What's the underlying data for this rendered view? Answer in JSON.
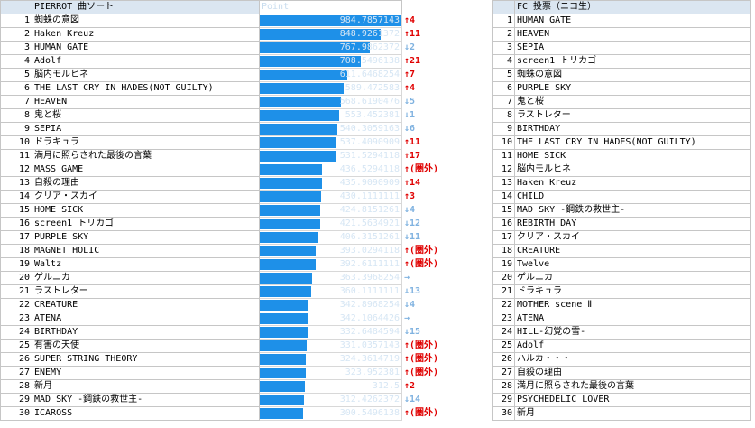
{
  "left": {
    "title": "PIERROT 曲ソート",
    "point_header": "Point",
    "rows": [
      {
        "rank": "1",
        "song": "蜘蛛の意図",
        "point": "984.7857143",
        "value": 984.7857,
        "change": "↑4",
        "dir": "up"
      },
      {
        "rank": "2",
        "song": "Haken Kreuz",
        "point": "848.9261372",
        "value": 848.9261,
        "change": "↑11",
        "dir": "up"
      },
      {
        "rank": "3",
        "song": "HUMAN GATE",
        "point": "767.9862372",
        "value": 767.9862,
        "change": "↓2",
        "dir": "down"
      },
      {
        "rank": "4",
        "song": "Adolf",
        "point": "708.5496138",
        "value": 708.5496,
        "change": "↑21",
        "dir": "up"
      },
      {
        "rank": "5",
        "song": "脳内モルヒネ",
        "point": "611.6468254",
        "value": 611.6468,
        "change": "↑7",
        "dir": "up"
      },
      {
        "rank": "6",
        "song": "THE LAST CRY IN HADES(NOT GUILTY)",
        "point": "589.472583",
        "value": 589.4726,
        "change": "↑4",
        "dir": "up"
      },
      {
        "rank": "7",
        "song": "HEAVEN",
        "point": "568.6190476",
        "value": 568.619,
        "change": "↓5",
        "dir": "down"
      },
      {
        "rank": "8",
        "song": "鬼と桜",
        "point": "553.452381",
        "value": 553.4524,
        "change": "↓1",
        "dir": "down"
      },
      {
        "rank": "9",
        "song": "SEPIA",
        "point": "540.3059163",
        "value": 540.3059,
        "change": "↓6",
        "dir": "down"
      },
      {
        "rank": "10",
        "song": "ドラキュラ",
        "point": "537.4090909",
        "value": 537.4091,
        "change": "↑11",
        "dir": "up"
      },
      {
        "rank": "11",
        "song": "満月に照らされた最後の言葉",
        "point": "531.5294118",
        "value": 531.5294,
        "change": "↑17",
        "dir": "up"
      },
      {
        "rank": "12",
        "song": "MASS GAME",
        "point": "436.5294118",
        "value": 436.5294,
        "change": "↑(圏外)",
        "dir": "up"
      },
      {
        "rank": "13",
        "song": "自殺の理由",
        "point": "435.9090909",
        "value": 435.9091,
        "change": "↑14",
        "dir": "up"
      },
      {
        "rank": "14",
        "song": "クリア・スカイ",
        "point": "430.1111111",
        "value": 430.1111,
        "change": "↑3",
        "dir": "up"
      },
      {
        "rank": "15",
        "song": "HOME SICK",
        "point": "424.8151261",
        "value": 424.8151,
        "change": "↓4",
        "dir": "down"
      },
      {
        "rank": "16",
        "song": "screen1 トリカゴ",
        "point": "421.5634921",
        "value": 421.5635,
        "change": "↓12",
        "dir": "down"
      },
      {
        "rank": "17",
        "song": "PURPLE SKY",
        "point": "406.3151261",
        "value": 406.3151,
        "change": "↓11",
        "dir": "down"
      },
      {
        "rank": "18",
        "song": "MAGNET HOLIC",
        "point": "393.0294118",
        "value": 393.0294,
        "change": "↑(圏外)",
        "dir": "up"
      },
      {
        "rank": "19",
        "song": "Waltz",
        "point": "392.6111111",
        "value": 392.6111,
        "change": "↑(圏外)",
        "dir": "up"
      },
      {
        "rank": "20",
        "song": "ゲルニカ",
        "point": "363.3968254",
        "value": 363.3968,
        "change": "→",
        "dir": "flat"
      },
      {
        "rank": "21",
        "song": "ラストレター",
        "point": "360.1111111",
        "value": 360.1111,
        "change": "↓13",
        "dir": "down"
      },
      {
        "rank": "22",
        "song": "CREATURE",
        "point": "342.8968254",
        "value": 342.8968,
        "change": "↓4",
        "dir": "down"
      },
      {
        "rank": "23",
        "song": "ATENA",
        "point": "342.1064426",
        "value": 342.1064,
        "change": "→",
        "dir": "flat"
      },
      {
        "rank": "24",
        "song": "BIRTHDAY",
        "point": "332.6484594",
        "value": 332.6485,
        "change": "↓15",
        "dir": "down"
      },
      {
        "rank": "25",
        "song": "有害の天使",
        "point": "331.0357143",
        "value": 331.0357,
        "change": "↑(圏外)",
        "dir": "up"
      },
      {
        "rank": "26",
        "song": "SUPER STRING THEORY",
        "point": "324.3614719",
        "value": 324.3615,
        "change": "↑(圏外)",
        "dir": "up"
      },
      {
        "rank": "27",
        "song": "ENEMY",
        "point": "323.952381",
        "value": 323.9524,
        "change": "↑(圏外)",
        "dir": "up"
      },
      {
        "rank": "28",
        "song": "新月",
        "point": "312.5",
        "value": 312.5,
        "change": "↑2",
        "dir": "up"
      },
      {
        "rank": "29",
        "song": "MAD SKY -鋼鉄の救世主-",
        "point": "312.4262372",
        "value": 312.4262,
        "change": "↓14",
        "dir": "down"
      },
      {
        "rank": "30",
        "song": "ICAROSS",
        "point": "300.5496138",
        "value": 300.5496,
        "change": "↑(圏外)",
        "dir": "up"
      }
    ]
  },
  "right": {
    "title": "FC 投票（ニコ生）",
    "rows": [
      {
        "rank": "1",
        "song": "HUMAN GATE"
      },
      {
        "rank": "2",
        "song": "HEAVEN"
      },
      {
        "rank": "3",
        "song": "SEPIA"
      },
      {
        "rank": "4",
        "song": "screen1 トリカゴ"
      },
      {
        "rank": "5",
        "song": "蜘蛛の意図"
      },
      {
        "rank": "6",
        "song": "PURPLE SKY"
      },
      {
        "rank": "7",
        "song": "鬼と桜"
      },
      {
        "rank": "8",
        "song": "ラストレター"
      },
      {
        "rank": "9",
        "song": "BIRTHDAY"
      },
      {
        "rank": "10",
        "song": "THE LAST CRY IN HADES(NOT GUILTY)"
      },
      {
        "rank": "11",
        "song": "HOME SICK"
      },
      {
        "rank": "12",
        "song": "脳内モルヒネ"
      },
      {
        "rank": "13",
        "song": "Haken Kreuz"
      },
      {
        "rank": "14",
        "song": "CHILD"
      },
      {
        "rank": "15",
        "song": "MAD SKY -鋼鉄の救世主-"
      },
      {
        "rank": "16",
        "song": "REBIRTH DAY"
      },
      {
        "rank": "17",
        "song": "クリア・スカイ"
      },
      {
        "rank": "18",
        "song": "CREATURE"
      },
      {
        "rank": "19",
        "song": "Twelve"
      },
      {
        "rank": "20",
        "song": "ゲルニカ"
      },
      {
        "rank": "21",
        "song": "ドラキュラ"
      },
      {
        "rank": "22",
        "song": "MOTHER scene Ⅱ"
      },
      {
        "rank": "23",
        "song": "ATENA"
      },
      {
        "rank": "24",
        "song": "HILL-幻覚の雪-"
      },
      {
        "rank": "25",
        "song": "Adolf"
      },
      {
        "rank": "26",
        "song": "ハルカ・・・"
      },
      {
        "rank": "27",
        "song": "自殺の理由"
      },
      {
        "rank": "28",
        "song": "満月に照らされた最後の言葉"
      },
      {
        "rank": "29",
        "song": "PSYCHEDELIC LOVER"
      },
      {
        "rank": "30",
        "song": "新月"
      }
    ]
  },
  "colors": {
    "bar": "#1e90e8",
    "up": "#e00000",
    "down": "#7fb2e0",
    "header": "#dbe6f1"
  },
  "bar_scale_max": 984.7857
}
